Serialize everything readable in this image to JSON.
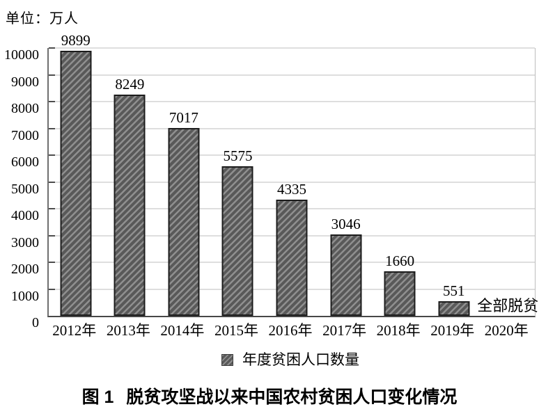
{
  "unit_label": "单位：万人",
  "chart_data": {
    "type": "bar",
    "title": "脱贫攻坚战以来中国农村贫困人口变化情况",
    "unit_label": "单位：万人",
    "categories": [
      "2012年",
      "2013年",
      "2014年",
      "2015年",
      "2016年",
      "2017年",
      "2018年",
      "2019年",
      "2020年"
    ],
    "values": [
      9899,
      8249,
      7017,
      5575,
      4335,
      3046,
      1660,
      551,
      null
    ],
    "annotations": [
      {
        "category": "2020年",
        "text": "全部脱贫"
      }
    ],
    "ylim": [
      0,
      10000
    ],
    "ytick_step": 1000,
    "grid": true,
    "legend": {
      "label": "年度贫困人口数量",
      "position": "bottom"
    }
  },
  "caption": {
    "prefix": "图 1",
    "text": "脱贫攻坚战以来中国农村贫困人口变化情况"
  },
  "colors": {
    "bar_dark": "#595959",
    "bar_light": "#8f8f8f",
    "bar_border": "#1c1c1c",
    "gridline": "#bdbdbd",
    "axis_left": "#6f6f6f",
    "axis_bottom": "#474747",
    "text": "#000000"
  }
}
